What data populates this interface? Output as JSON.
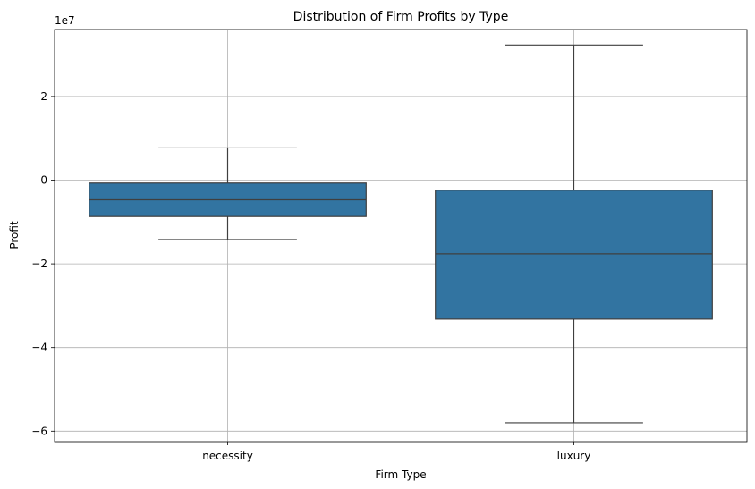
{
  "chart_data": {
    "type": "box",
    "title": "Distribution of Firm Profits by Type",
    "xlabel": "Firm Type",
    "ylabel": "Profit",
    "y_multiplier_label": "1e7",
    "y_scale": 10000000,
    "ylim": [
      -6.25,
      3.6
    ],
    "y_ticks": [
      -6,
      -4,
      -2,
      0,
      2
    ],
    "y_tick_labels": [
      "−6",
      "−4",
      "−2",
      "0",
      "2"
    ],
    "grid": true,
    "box_color": "#3274a1",
    "categories": [
      "necessity",
      "luxury"
    ],
    "boxes": [
      {
        "category": "necessity",
        "whisker_low": -14200000,
        "q1": -8700000,
        "median": -4700000,
        "q3": -700000,
        "whisker_high": 7700000
      },
      {
        "category": "luxury",
        "whisker_low": -58000000,
        "q1": -33200000,
        "median": -17600000,
        "q3": -2400000,
        "whisker_high": 32300000
      }
    ]
  }
}
